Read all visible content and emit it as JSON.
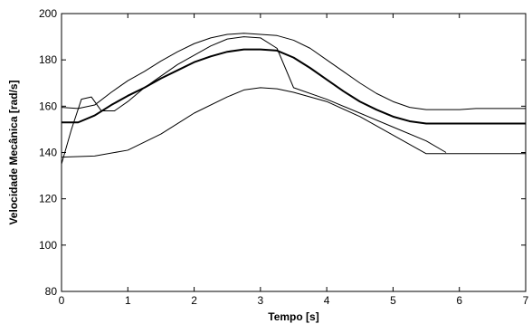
{
  "chart_data": {
    "type": "line",
    "title": "",
    "xlabel": "Tempo [s]",
    "ylabel": "Velocidade Mecânica [rad/s]",
    "xlim": [
      0,
      7
    ],
    "ylim": [
      80,
      200
    ],
    "xticks": [
      "0",
      "1",
      "2",
      "3",
      "4",
      "5",
      "6",
      "7"
    ],
    "yticks": [
      "80",
      "100",
      "120",
      "140",
      "160",
      "180",
      "200"
    ],
    "grid": false,
    "legend": "none",
    "series": [
      {
        "x": [
          0,
          0.25,
          0.5,
          0.75,
          1,
          1.25,
          1.5,
          1.75,
          2,
          2.25,
          2.5,
          2.75,
          3,
          3.25,
          3.5,
          3.75,
          4,
          4.25,
          4.5,
          4.75,
          5,
          5.25,
          5.5,
          5.75,
          6,
          6.25,
          6.5,
          6.75,
          7
        ],
        "values": [
          159.5,
          159,
          160.5,
          166,
          171,
          175,
          179.5,
          183.5,
          187,
          189.5,
          191,
          191.5,
          191,
          190.5,
          188.5,
          185,
          180,
          175,
          170,
          165.5,
          162,
          159.5,
          158.5,
          158.5,
          158.5,
          159,
          159,
          159,
          159
        ]
      },
      {
        "x": [
          0,
          0.25,
          0.5,
          0.75,
          1,
          1.25,
          1.5,
          1.75,
          2,
          2.25,
          2.5,
          2.75,
          3,
          3.25,
          3.5,
          3.75,
          4,
          4.25,
          4.5,
          4.75,
          5,
          5.25,
          5.5,
          5.75,
          6,
          6.25,
          6.5,
          6.75,
          7
        ],
        "values": [
          153,
          153,
          156,
          160.5,
          164.5,
          168,
          172,
          175.5,
          179,
          181.5,
          183.5,
          184.5,
          184.5,
          184,
          181,
          176.5,
          171.5,
          166.5,
          162,
          158.5,
          155.5,
          153.5,
          152.5,
          152.5,
          152.5,
          152.5,
          152.5,
          152.5,
          152.5
        ]
      },
      {
        "x": [
          0,
          0.5,
          1,
          1.5,
          2,
          2.5,
          2.75,
          3,
          3.25,
          3.5,
          4,
          4.5,
          5,
          5.5,
          6,
          6.5,
          7
        ],
        "values": [
          138,
          138.5,
          141,
          148,
          157,
          164,
          167,
          168,
          167.5,
          166,
          162,
          155.5,
          147.5,
          139.5,
          139.5,
          139.5,
          139.5
        ]
      },
      {
        "x": [
          0,
          0.15,
          0.3,
          0.45,
          0.6,
          0.8,
          1,
          1.25,
          1.5,
          1.75,
          2,
          2.25,
          2.5,
          2.75,
          3,
          3.25,
          3.5,
          4,
          4.5,
          5,
          5.5,
          5.8
        ],
        "values": [
          135,
          150,
          163,
          164,
          158,
          158,
          162,
          168,
          173,
          178,
          182,
          186,
          189,
          190,
          189.5,
          185,
          168,
          163,
          157,
          151,
          145,
          140
        ]
      }
    ]
  }
}
